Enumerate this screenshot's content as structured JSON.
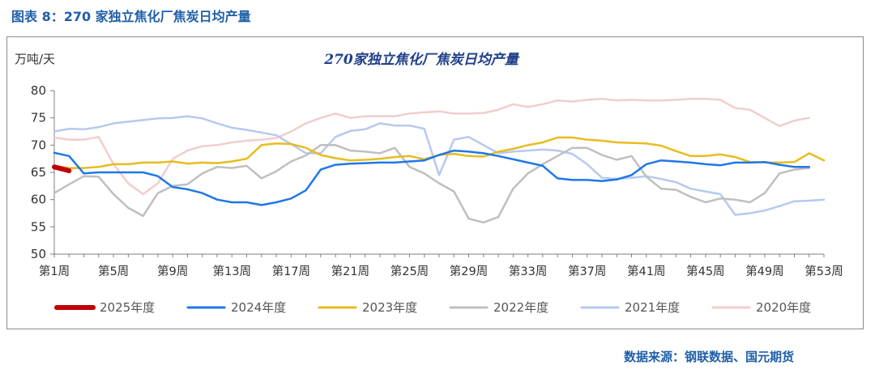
{
  "caption": "图表 8：270 家独立焦化厂焦炭日均产量",
  "source": "数据来源：钢联数据、国元期货",
  "chart_data": {
    "type": "line",
    "title": "270家独立焦化厂焦炭日均产量",
    "ylabel": "万吨/天",
    "xlabel": "",
    "ylim": [
      50,
      80
    ],
    "yticks": [
      50,
      55,
      60,
      65,
      70,
      75,
      80
    ],
    "x": [
      1,
      2,
      3,
      4,
      5,
      6,
      7,
      8,
      9,
      10,
      11,
      12,
      13,
      14,
      15,
      16,
      17,
      18,
      19,
      20,
      21,
      22,
      23,
      24,
      25,
      26,
      27,
      28,
      29,
      30,
      31,
      32,
      33,
      34,
      35,
      36,
      37,
      38,
      39,
      40,
      41,
      42,
      43,
      44,
      45,
      46,
      47,
      48,
      49,
      50,
      51,
      52,
      53
    ],
    "xtick_labels": [
      {
        "week": 1,
        "label": "第1周"
      },
      {
        "week": 5,
        "label": "第5周"
      },
      {
        "week": 9,
        "label": "第9周"
      },
      {
        "week": 13,
        "label": "第13周"
      },
      {
        "week": 17,
        "label": "第17周"
      },
      {
        "week": 21,
        "label": "第21周"
      },
      {
        "week": 25,
        "label": "第25周"
      },
      {
        "week": 29,
        "label": "第29周"
      },
      {
        "week": 33,
        "label": "第33周"
      },
      {
        "week": 37,
        "label": "第37周"
      },
      {
        "week": 41,
        "label": "第41周"
      },
      {
        "week": 45,
        "label": "第45周"
      },
      {
        "week": 49,
        "label": "第49周"
      },
      {
        "week": 53,
        "label": "第53周"
      }
    ],
    "grid": false,
    "legend_position": "bottom",
    "series": [
      {
        "name": "2020年度",
        "color": "#f2cdcd",
        "width": 2.5,
        "values": [
          71.4,
          71.0,
          71.0,
          71.5,
          66.5,
          63.0,
          61.0,
          63.0,
          67.5,
          69.0,
          69.8,
          70.0,
          70.5,
          70.8,
          71.0,
          71.3,
          72.5,
          74.0,
          75.0,
          75.8,
          75.0,
          75.3,
          75.3,
          75.3,
          75.8,
          76.0,
          76.2,
          75.8,
          75.8,
          75.9,
          76.5,
          77.5,
          77.0,
          77.5,
          78.2,
          78.0,
          78.3,
          78.5,
          78.2,
          78.3,
          78.2,
          78.2,
          78.3,
          78.5,
          78.5,
          78.3,
          76.8,
          76.5,
          75.0,
          73.5,
          74.5,
          75.0,
          null
        ]
      },
      {
        "name": "2021年度",
        "color": "#b7c9ef",
        "width": 2.5,
        "values": [
          72.5,
          73.0,
          72.9,
          73.3,
          74.0,
          74.3,
          74.6,
          74.9,
          75.0,
          75.3,
          74.9,
          74.0,
          73.2,
          72.8,
          72.3,
          71.8,
          70.2,
          68.5,
          68.5,
          71.5,
          72.6,
          72.9,
          74.0,
          73.6,
          73.6,
          73.0,
          64.5,
          71.0,
          71.5,
          70.0,
          68.5,
          68.8,
          69.0,
          69.2,
          69.0,
          68.4,
          66.5,
          64.0,
          63.8,
          64.0,
          64.3,
          63.8,
          63.2,
          62.0,
          61.5,
          61.0,
          57.2,
          57.5,
          58.0,
          58.8,
          59.7,
          59.8,
          60.0
        ]
      },
      {
        "name": "2022年度",
        "color": "#bfbfbf",
        "width": 2.5,
        "values": [
          61.2,
          62.8,
          64.3,
          64.2,
          61.0,
          58.5,
          57.0,
          61.2,
          62.5,
          62.8,
          64.8,
          66.0,
          65.8,
          66.2,
          63.9,
          65.2,
          67.0,
          68.1,
          70.0,
          70.0,
          69.0,
          68.8,
          68.5,
          69.5,
          66.0,
          64.8,
          63.0,
          61.5,
          56.5,
          55.8,
          56.8,
          62.0,
          64.8,
          66.5,
          68.0,
          69.5,
          69.5,
          68.2,
          67.3,
          68.0,
          64.2,
          62.0,
          61.8,
          60.5,
          59.5,
          60.2,
          60.0,
          59.5,
          61.2,
          64.8,
          65.5,
          65.8,
          null
        ]
      },
      {
        "name": "2023年度",
        "color": "#e8bc1e",
        "width": 2.5,
        "values": [
          66.2,
          65.8,
          65.8,
          66.0,
          66.5,
          66.5,
          66.8,
          66.8,
          67.0,
          66.6,
          66.8,
          66.7,
          67.0,
          67.5,
          70.0,
          70.3,
          70.2,
          69.5,
          68.2,
          67.6,
          67.2,
          67.3,
          67.5,
          67.8,
          68.0,
          67.4,
          68.2,
          68.4,
          68.0,
          67.9,
          68.8,
          69.3,
          70.0,
          70.5,
          71.4,
          71.4,
          71.0,
          70.8,
          70.5,
          70.4,
          70.3,
          69.9,
          68.9,
          68.0,
          68.0,
          68.3,
          67.8,
          66.9,
          66.8,
          66.8,
          66.9,
          68.5,
          67.2
        ]
      },
      {
        "name": "2024年度",
        "color": "#1f77e8",
        "width": 2.5,
        "values": [
          68.6,
          68.0,
          64.8,
          65.0,
          65.0,
          65.0,
          65.0,
          64.3,
          62.3,
          61.9,
          61.2,
          60.0,
          59.5,
          59.5,
          59.0,
          59.5,
          60.2,
          61.7,
          65.5,
          66.4,
          66.6,
          66.7,
          66.8,
          66.8,
          67.0,
          67.2,
          68.2,
          69.0,
          68.8,
          68.5,
          68.0,
          67.4,
          66.8,
          66.2,
          63.9,
          63.6,
          63.6,
          63.4,
          63.7,
          64.5,
          66.5,
          67.2,
          67.0,
          66.8,
          66.5,
          66.3,
          66.8,
          66.8,
          66.9,
          66.4,
          66.0,
          66.0,
          null
        ]
      },
      {
        "name": "2025年度",
        "color": "#c00000",
        "width": 6,
        "values": [
          66.0,
          65.3,
          null,
          null,
          null,
          null,
          null,
          null,
          null,
          null,
          null,
          null,
          null,
          null,
          null,
          null,
          null,
          null,
          null,
          null,
          null,
          null,
          null,
          null,
          null,
          null,
          null,
          null,
          null,
          null,
          null,
          null,
          null,
          null,
          null,
          null,
          null,
          null,
          null,
          null,
          null,
          null,
          null,
          null,
          null,
          null,
          null,
          null,
          null,
          null,
          null,
          null,
          null
        ]
      }
    ]
  }
}
